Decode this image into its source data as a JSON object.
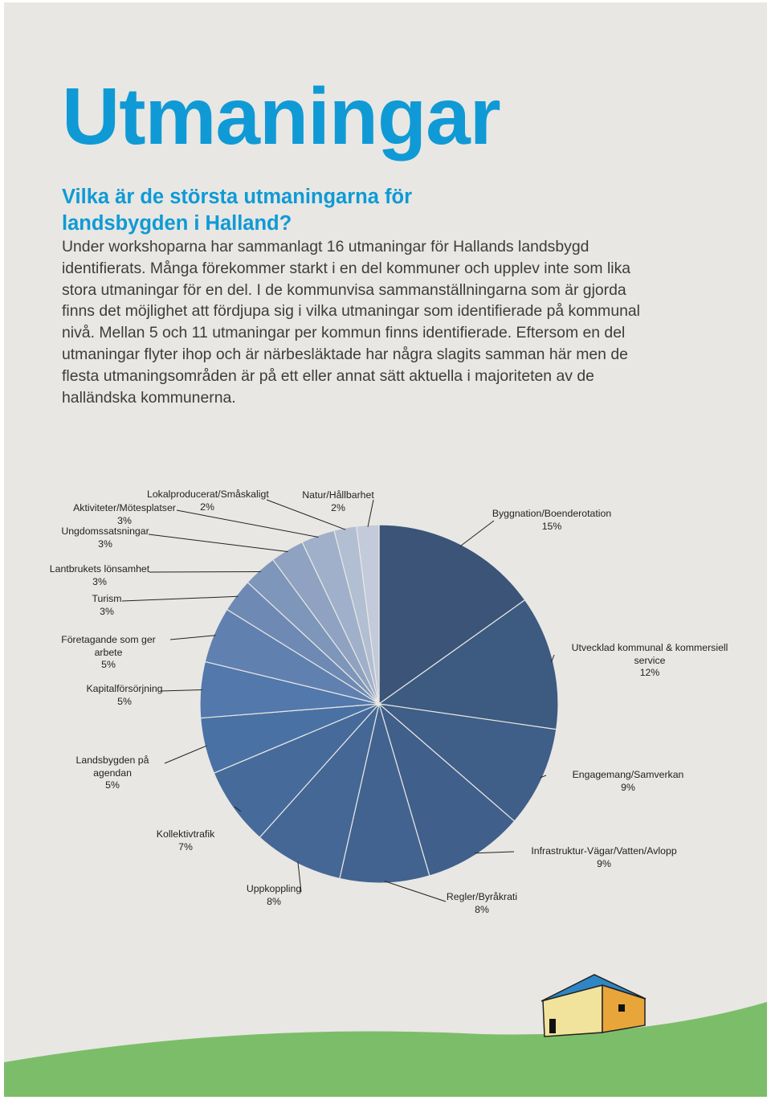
{
  "header": {
    "title": "Utmaningar",
    "subtitle": "Vilka är de största utmaningarna för landsbygden i Halland?"
  },
  "body": {
    "paragraph": "Under workshoparna har sammanlagt 16 utmaningar för Hallands landsbygd identifierats. Många förekommer starkt i en del kommuner och upplev inte som lika stora utmaningar för en del. I de kommunvisa sammanställningarna som är gjorda finns det möjlighet att fördjupa sig i vilka utmaningar som identifierade på kommunal nivå. Mellan 5 och 11 utmaningar per kommun finns identifierade. Eftersom en del utmaningar flyter ihop och är närbesläktade har några slagits samman här men de flesta utmaningsområden är på ett eller annat sätt aktuella i majoriteten av de halländska kommunerna."
  },
  "chart_data": {
    "type": "pie",
    "categories": [
      "Byggnation/Boenderotation",
      "Utvecklad kommunal & kommersiell service",
      "Engagemang/Samverkan",
      "Infrastruktur-Vägar/Vatten/Avlopp",
      "Regler/Byråkrati",
      "Uppkoppling",
      "Kollektivtrafik",
      "Landsbygden på agendan",
      "Kapitalförsörjning",
      "Företagande som ger arbete",
      "Turism",
      "Lantbrukets lönsamhet",
      "Ungdomssatsningar",
      "Aktiviteter/Mötesplatser",
      "Lokalproducerat/Småskaligt",
      "Natur/Hållbarhet"
    ],
    "values": [
      15,
      12,
      9,
      9,
      8,
      8,
      7,
      5,
      5,
      5,
      3,
      3,
      3,
      3,
      2,
      2
    ],
    "value_labels": [
      "15%",
      "12%",
      "9%",
      "9%",
      "8%",
      "8%",
      "7%",
      "5%",
      "5%",
      "5%",
      "3%",
      "3%",
      "3%",
      "3%",
      "2%",
      "2%"
    ],
    "colors": [
      "#3b5478",
      "#3d5a80",
      "#3f5e88",
      "#405f8a",
      "#42638f",
      "#446795",
      "#466b9b",
      "#4a71a4",
      "#5278ac",
      "#6080b0",
      "#6e8ab4",
      "#7e96ba",
      "#8fa2c1",
      "#a0b0ca",
      "#b2bed2",
      "#c3cbda"
    ]
  }
}
